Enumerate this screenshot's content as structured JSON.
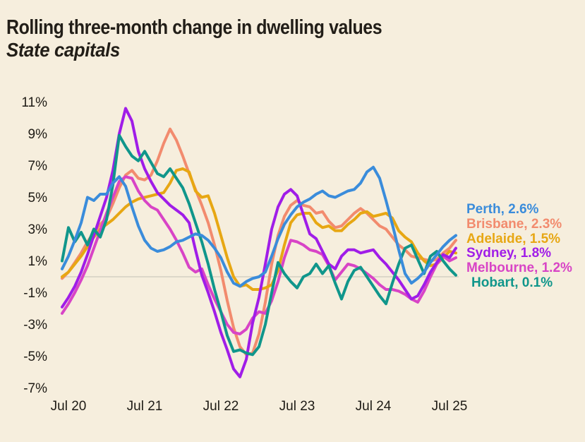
{
  "title": "Rolling three-month change in dwelling values",
  "subtitle": "State capitals",
  "colors": {
    "background": "#f6eedd",
    "text": "#221e18",
    "axis_text": "#1e1b15",
    "zero_line": "#dcd7c9"
  },
  "chart_data": {
    "type": "line",
    "title": "Rolling three-month change in dwelling values",
    "subtitle": "State capitals",
    "ylabel": "",
    "xlabel": "",
    "ylim": [
      -7,
      11
    ],
    "grid": false,
    "zero_line": true,
    "legend_position": "right",
    "y_ticks": [
      {
        "label": "11%",
        "value": 11
      },
      {
        "label": "9%",
        "value": 9
      },
      {
        "label": "7%",
        "value": 7
      },
      {
        "label": "5%",
        "value": 5
      },
      {
        "label": "3%",
        "value": 3
      },
      {
        "label": "1%",
        "value": 1
      },
      {
        "label": "-1%",
        "value": -1
      },
      {
        "label": "-3%",
        "value": -3
      },
      {
        "label": "-5%",
        "value": -5
      },
      {
        "label": "-7%",
        "value": -7
      }
    ],
    "x_ticks": [
      {
        "label": "Jul 20",
        "month": "2020-07"
      },
      {
        "label": "Jul 21",
        "month": "2021-07"
      },
      {
        "label": "Jul 22",
        "month": "2022-07"
      },
      {
        "label": "Jul 23",
        "month": "2023-07"
      },
      {
        "label": "Jul 24",
        "month": "2024-07"
      },
      {
        "label": "Jul 25",
        "month": "2025-07"
      }
    ],
    "months": [
      "2020-06",
      "2020-07",
      "2020-08",
      "2020-09",
      "2020-10",
      "2020-11",
      "2020-12",
      "2021-01",
      "2021-02",
      "2021-03",
      "2021-04",
      "2021-05",
      "2021-06",
      "2021-07",
      "2021-08",
      "2021-09",
      "2021-10",
      "2021-11",
      "2021-12",
      "2022-01",
      "2022-02",
      "2022-03",
      "2022-04",
      "2022-05",
      "2022-06",
      "2022-07",
      "2022-08",
      "2022-09",
      "2022-10",
      "2022-11",
      "2022-12",
      "2023-01",
      "2023-02",
      "2023-03",
      "2023-04",
      "2023-05",
      "2023-06",
      "2023-07",
      "2023-08",
      "2023-09",
      "2023-10",
      "2023-11",
      "2023-12",
      "2024-01",
      "2024-02",
      "2024-03",
      "2024-04",
      "2024-05",
      "2024-06",
      "2024-07",
      "2024-08",
      "2024-09",
      "2024-10",
      "2024-11",
      "2024-12",
      "2025-01",
      "2025-02",
      "2025-03",
      "2025-04",
      "2025-05",
      "2025-06",
      "2025-07",
      "2025-08"
    ],
    "series": [
      {
        "name": "Perth",
        "legend_label": "Perth, 2.6%",
        "final_value": 2.6,
        "color": "#3a8cdb",
        "values": [
          0.5,
          1.3,
          2.3,
          3.4,
          5.0,
          4.8,
          5.2,
          5.2,
          5.9,
          6.3,
          5.7,
          4.4,
          3.2,
          2.3,
          1.8,
          1.6,
          1.7,
          1.9,
          2.2,
          2.3,
          2.5,
          2.7,
          2.6,
          2.3,
          1.8,
          1.2,
          0.3,
          -0.4,
          -0.6,
          -0.3,
          -0.1,
          0.0,
          0.3,
          1.3,
          2.4,
          3.3,
          3.9,
          4.4,
          4.7,
          4.9,
          5.2,
          5.4,
          5.1,
          5.0,
          5.2,
          5.4,
          5.5,
          5.9,
          6.6,
          6.9,
          6.2,
          4.8,
          3.3,
          1.7,
          0.2,
          -0.4,
          -0.1,
          0.3,
          0.9,
          1.4,
          1.9,
          2.3,
          2.6
        ]
      },
      {
        "name": "Brisbane",
        "legend_label": "Brisbane, 2.3%",
        "final_value": 2.3,
        "color": "#f28b6e",
        "values": [
          -0.1,
          0.3,
          0.9,
          1.5,
          2.2,
          2.8,
          3.3,
          3.7,
          4.6,
          5.6,
          6.4,
          6.7,
          6.2,
          6.1,
          6.4,
          7.3,
          8.4,
          9.3,
          8.6,
          7.6,
          6.5,
          5.5,
          4.5,
          3.4,
          2.0,
          0.4,
          -1.5,
          -3.2,
          -4.4,
          -4.9,
          -4.8,
          -3.6,
          -1.6,
          0.8,
          2.6,
          3.8,
          4.5,
          4.8,
          4.5,
          4.4,
          4.0,
          4.1,
          3.5,
          3.1,
          3.2,
          3.6,
          4.0,
          4.3,
          4.0,
          3.6,
          3.2,
          3.0,
          2.5,
          2.0,
          1.7,
          1.3,
          1.2,
          1.1,
          1.0,
          1.1,
          1.5,
          1.8,
          2.3
        ]
      },
      {
        "name": "Adelaide",
        "legend_label": "Adelaide, 1.5%",
        "final_value": 1.5,
        "color": "#e7a713",
        "values": [
          0.0,
          0.3,
          0.8,
          1.3,
          1.9,
          2.5,
          3.0,
          3.3,
          3.6,
          4.0,
          4.4,
          4.7,
          4.9,
          5.0,
          5.1,
          5.2,
          5.3,
          5.9,
          6.7,
          6.8,
          6.6,
          5.4,
          5.0,
          5.1,
          4.0,
          2.6,
          1.2,
          0.0,
          -0.6,
          -0.5,
          -0.8,
          -0.8,
          -0.7,
          -0.5,
          0.4,
          2.0,
          3.4,
          3.9,
          4.0,
          4.0,
          3.4,
          3.1,
          3.2,
          2.9,
          2.9,
          3.3,
          3.6,
          4.0,
          4.1,
          3.8,
          3.9,
          4.0,
          3.7,
          2.9,
          2.5,
          2.2,
          1.5,
          1.0,
          0.7,
          0.8,
          1.2,
          1.6,
          1.5
        ]
      },
      {
        "name": "Sydney",
        "legend_label": "Sydney, 1.8%",
        "final_value": 1.8,
        "color": "#a01de8",
        "values": [
          -1.9,
          -1.3,
          -0.6,
          0.3,
          1.4,
          2.6,
          3.8,
          5.0,
          6.7,
          9.0,
          10.6,
          9.8,
          7.9,
          6.8,
          6.0,
          5.3,
          4.9,
          4.5,
          4.2,
          3.9,
          3.4,
          1.7,
          0.1,
          -1.0,
          -2.2,
          -3.5,
          -4.6,
          -5.8,
          -6.3,
          -5.2,
          -2.9,
          -1.3,
          0.8,
          3.0,
          4.4,
          5.2,
          5.5,
          5.1,
          3.9,
          2.7,
          2.4,
          1.6,
          0.8,
          0.5,
          1.3,
          1.7,
          1.7,
          1.5,
          1.6,
          1.7,
          1.2,
          0.8,
          0.3,
          -0.2,
          -0.8,
          -1.4,
          -1.2,
          -0.5,
          0.3,
          0.9,
          1.4,
          1.2,
          1.8
        ]
      },
      {
        "name": "Melbourne",
        "legend_label": "Melbourne, 1.2%",
        "final_value": 1.2,
        "color": "#d844c6",
        "values": [
          -2.3,
          -1.7,
          -1.0,
          -0.2,
          0.7,
          1.8,
          2.9,
          4.0,
          5.0,
          6.0,
          6.3,
          6.2,
          5.4,
          4.8,
          4.4,
          4.2,
          3.6,
          3.0,
          2.3,
          1.5,
          0.6,
          0.3,
          0.5,
          -0.5,
          -1.4,
          -2.2,
          -3.0,
          -3.5,
          -3.6,
          -3.3,
          -2.6,
          -2.2,
          -2.3,
          -1.5,
          -0.3,
          1.2,
          2.3,
          2.2,
          2.0,
          1.7,
          1.6,
          1.4,
          0.7,
          -0.2,
          0.3,
          0.8,
          0.7,
          0.5,
          0.2,
          -0.1,
          -0.5,
          -0.8,
          -0.8,
          -0.9,
          -1.1,
          -1.4,
          -1.6,
          -0.9,
          0.0,
          0.8,
          1.3,
          1.0,
          1.2
        ]
      },
      {
        "name": "Hobart",
        "legend_label": "Hobart, 0.1%",
        "final_value": 0.1,
        "color": "#10968b",
        "values": [
          1.0,
          3.1,
          2.2,
          2.8,
          2.0,
          3.0,
          2.5,
          3.6,
          5.8,
          8.9,
          8.2,
          7.6,
          7.3,
          7.9,
          7.2,
          6.5,
          6.3,
          6.8,
          6.2,
          5.6,
          4.6,
          3.4,
          2.2,
          0.8,
          -0.8,
          -2.2,
          -3.7,
          -4.7,
          -4.6,
          -4.8,
          -4.9,
          -4.4,
          -3.0,
          -1.0,
          0.9,
          0.2,
          -0.3,
          -0.7,
          0.0,
          0.2,
          0.8,
          0.2,
          0.7,
          -0.4,
          -1.4,
          -0.3,
          0.4,
          0.6,
          0.0,
          -0.6,
          -1.2,
          -1.7,
          -0.4,
          0.8,
          1.8,
          2.0,
          1.1,
          0.2,
          1.3,
          1.6,
          1.0,
          0.5,
          0.1
        ]
      }
    ]
  }
}
